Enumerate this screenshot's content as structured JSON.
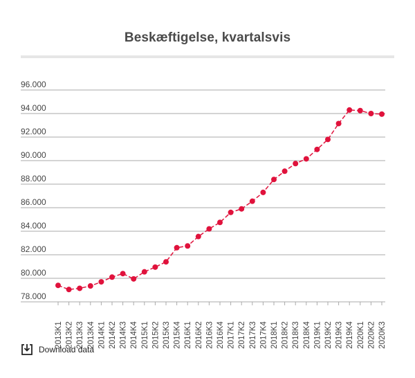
{
  "title": "Beskæftigelse, kvartalsvis",
  "download_label": "Download data",
  "colors": {
    "series": "#e0123c",
    "grid": "#aaaaaa",
    "axis_text": "#444444",
    "title": "#4a4a4a"
  },
  "icons": {
    "download": "download-icon"
  },
  "chart_data": {
    "type": "line",
    "title": "Beskæftigelse, kvartalsvis",
    "xlabel": "",
    "ylabel": "",
    "ylim": [
      78000,
      96000
    ],
    "yticks": [
      78000,
      80000,
      82000,
      84000,
      86000,
      88000,
      90000,
      92000,
      94000,
      96000
    ],
    "ytick_labels": [
      "78.000",
      "80.000",
      "82.000",
      "84.000",
      "86.000",
      "88.000",
      "90.000",
      "92.000",
      "94.000",
      "96.000"
    ],
    "grid": true,
    "legend": "none",
    "categories": [
      "2013K1",
      "2013K2",
      "2013K3",
      "2013K4",
      "2014K1",
      "2014K2",
      "2014K3",
      "2014K4",
      "2015K1",
      "2015K2",
      "2015K3",
      "2015K4",
      "2016K1",
      "2016K2",
      "2016K3",
      "2016K4",
      "2017K1",
      "2017K2",
      "2017K3",
      "2017K4",
      "2018K1",
      "2018K2",
      "2018K3",
      "2018K4",
      "2019K1",
      "2019K2",
      "2019K3",
      "2019K4",
      "2020K1",
      "2020K2",
      "2020K3"
    ],
    "series": [
      {
        "values": [
          79400,
          79050,
          79150,
          79350,
          79700,
          80100,
          80400,
          79950,
          80550,
          80950,
          81400,
          82600,
          82750,
          83550,
          84200,
          84750,
          85600,
          85900,
          86550,
          87300,
          88400,
          89100,
          89750,
          90150,
          90950,
          91800,
          93150,
          94300,
          94250,
          94000,
          93950
        ]
      }
    ]
  }
}
